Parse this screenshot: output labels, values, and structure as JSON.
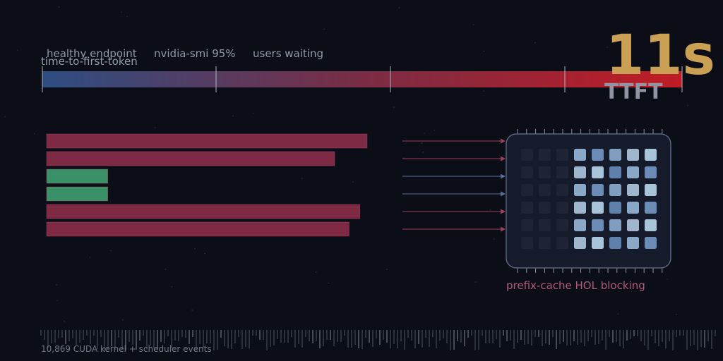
{
  "scale": {
    "title": "time-to-first-token",
    "labels": [
      "healthy endpoint",
      "nvidia-smi 95%",
      "users waiting"
    ],
    "gradient": [
      "#2d4e82",
      "#7a2c44",
      "#c01c24"
    ]
  },
  "metric": {
    "value": "11s",
    "label": "TTFT",
    "value_color": "#c9a054",
    "label_color": "#8f95a3"
  },
  "requests": [
    {
      "status": "blocked",
      "length": 0.89
    },
    {
      "status": "blocked",
      "length": 0.8
    },
    {
      "status": "served",
      "length": 0.17
    },
    {
      "status": "served",
      "length": 0.17
    },
    {
      "status": "blocked",
      "length": 0.87
    },
    {
      "status": "blocked",
      "length": 0.84
    }
  ],
  "status_colors": {
    "blocked": "#7f2a44",
    "served": "#3a9168"
  },
  "arrow_colors": [
    "#9a3f5a",
    "#9a3f5a",
    "#5a6e9a",
    "#5a6e9a",
    "#9a3f5a",
    "#9a3f5a"
  ],
  "cache": {
    "caption": "prefix-cache HOL blocking",
    "caption_color": "#b05a7e",
    "rows": 6,
    "cols": 8,
    "lit_from_col": 3
  },
  "footer": {
    "events": "10,869 CUDA kernel + scheduler events"
  }
}
